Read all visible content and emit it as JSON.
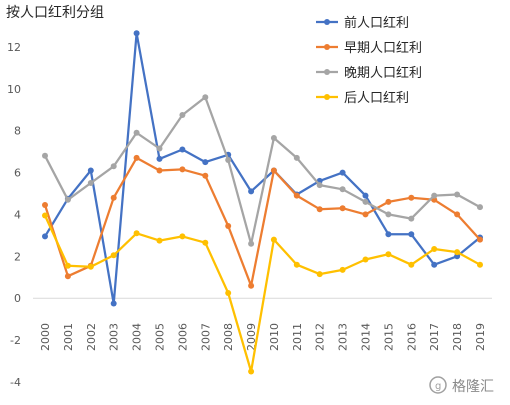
{
  "chart_data": {
    "type": "line",
    "title": "按人口红利分组",
    "xlabel": "",
    "ylabel": "",
    "ylim": [
      -4,
      14
    ],
    "yticks": [
      -4,
      -2,
      0,
      2,
      4,
      6,
      8,
      10,
      12,
      14
    ],
    "grid": false,
    "legend_position": "top-right",
    "categories": [
      "2000",
      "2001",
      "2002",
      "2003",
      "2004",
      "2005",
      "2006",
      "2007",
      "2008",
      "2009",
      "2010",
      "2011",
      "2012",
      "2013",
      "2014",
      "2015",
      "2016",
      "2017",
      "2018",
      "2019"
    ],
    "series": [
      {
        "name": "前人口红利",
        "color": "#4472C4",
        "values": [
          2.95,
          4.75,
          6.1,
          -0.25,
          12.65,
          6.65,
          7.1,
          6.5,
          6.85,
          5.1,
          6.1,
          4.95,
          5.6,
          6.0,
          4.9,
          3.05,
          3.05,
          1.6,
          2.0,
          2.9
        ]
      },
      {
        "name": "早期人口红利",
        "color": "#ED7D31",
        "values": [
          4.45,
          1.05,
          1.55,
          4.8,
          6.7,
          6.1,
          6.15,
          5.85,
          3.45,
          0.6,
          6.1,
          4.9,
          4.25,
          4.3,
          4.0,
          4.6,
          4.8,
          4.7,
          4.0,
          2.8
        ]
      },
      {
        "name": "晚期人口红利",
        "color": "#A5A5A5",
        "values": [
          6.8,
          4.7,
          5.5,
          6.3,
          7.9,
          7.15,
          8.75,
          9.6,
          6.6,
          2.6,
          7.65,
          6.7,
          5.4,
          5.2,
          4.6,
          4.0,
          3.8,
          4.9,
          4.95,
          4.35
        ]
      },
      {
        "name": "后人口红利",
        "color": "#FFC000",
        "values": [
          3.95,
          1.55,
          1.5,
          2.05,
          3.1,
          2.75,
          2.95,
          2.65,
          0.25,
          -3.5,
          2.8,
          1.6,
          1.15,
          1.35,
          1.85,
          2.1,
          1.6,
          2.35,
          2.2,
          1.6
        ]
      }
    ]
  },
  "watermark": {
    "text": "格隆汇"
  }
}
